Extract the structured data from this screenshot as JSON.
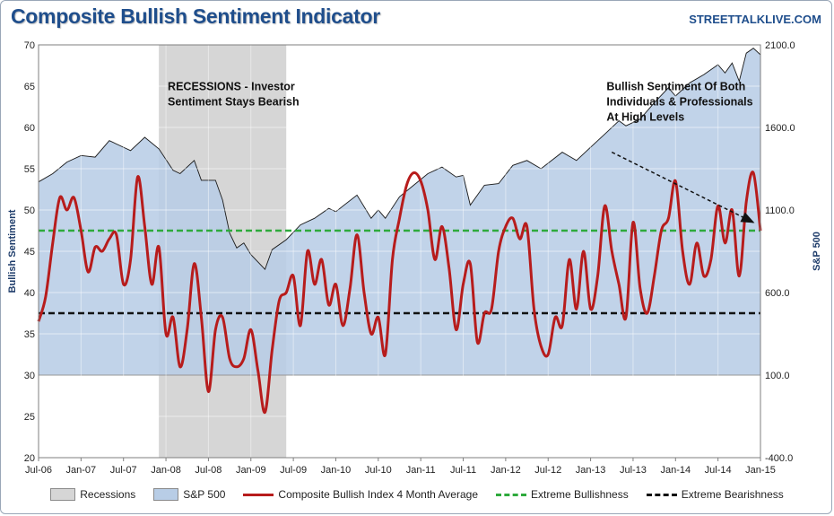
{
  "title": "Composite Bullish Sentiment Indicator",
  "brand": "STREETTALKLIVE.COM",
  "colors": {
    "recession": "#d6d6d6",
    "sp500_fill": "#b8cde6",
    "sp500_line": "#1a1a1a",
    "sentiment": "#b71c1c",
    "extreme_bullish": "#2eaa3c",
    "extreme_bearish": "#111111"
  },
  "chart_data": {
    "type": "line",
    "title": "Composite Bullish Sentiment Indicator",
    "ylabel": "Bullish Sentiment",
    "y2label": "S&P 500",
    "xlim": [
      "2006-07",
      "2015-01"
    ],
    "ylim": [
      20,
      70
    ],
    "y2lim": [
      -400,
      2100
    ],
    "xticks": [
      "Jul-06",
      "Jan-07",
      "Jul-07",
      "Jan-08",
      "Jul-08",
      "Jan-09",
      "Jul-09",
      "Jan-10",
      "Jul-10",
      "Jan-11",
      "Jul-11",
      "Jan-12",
      "Jul-12",
      "Jan-13",
      "Jul-13",
      "Jan-14",
      "Jul-14",
      "Jan-15"
    ],
    "yticks": [
      20,
      25,
      30,
      35,
      40,
      45,
      50,
      55,
      60,
      65,
      70
    ],
    "y2ticks": [
      "-400.0",
      "100.0",
      "600.0",
      "1100.0",
      "1600.0",
      "2100.0"
    ],
    "y2tick_values": [
      -400,
      100,
      600,
      1100,
      1600,
      2100
    ],
    "grid": true,
    "legend_position": "bottom",
    "recession": {
      "name": "Recessions",
      "start": "2007-12",
      "end": "2009-06"
    },
    "extreme_bullishness": {
      "name": "Extreme Bullishness",
      "value": 47.5
    },
    "extreme_bearishness": {
      "name": "Extreme Bearishness",
      "value": 37.5
    },
    "series": [
      {
        "name": "S&P 500",
        "axis": "right",
        "points": [
          [
            "2006-07",
            1270
          ],
          [
            "2006-09",
            1320
          ],
          [
            "2006-11",
            1390
          ],
          [
            "2007-01",
            1430
          ],
          [
            "2007-03",
            1420
          ],
          [
            "2007-05",
            1520
          ],
          [
            "2007-07",
            1480
          ],
          [
            "2007-08",
            1460
          ],
          [
            "2007-10",
            1540
          ],
          [
            "2007-12",
            1470
          ],
          [
            "2008-02",
            1340
          ],
          [
            "2008-03",
            1320
          ],
          [
            "2008-05",
            1400
          ],
          [
            "2008-06",
            1280
          ],
          [
            "2008-08",
            1280
          ],
          [
            "2008-09",
            1160
          ],
          [
            "2008-10",
            960
          ],
          [
            "2008-11",
            870
          ],
          [
            "2008-12",
            900
          ],
          [
            "2009-01",
            830
          ],
          [
            "2009-03",
            740
          ],
          [
            "2009-04",
            860
          ],
          [
            "2009-06",
            920
          ],
          [
            "2009-08",
            1010
          ],
          [
            "2009-10",
            1050
          ],
          [
            "2009-12",
            1110
          ],
          [
            "2010-01",
            1090
          ],
          [
            "2010-04",
            1190
          ],
          [
            "2010-06",
            1050
          ],
          [
            "2010-07",
            1100
          ],
          [
            "2010-08",
            1050
          ],
          [
            "2010-10",
            1180
          ],
          [
            "2010-12",
            1250
          ],
          [
            "2011-02",
            1320
          ],
          [
            "2011-04",
            1360
          ],
          [
            "2011-06",
            1300
          ],
          [
            "2011-07",
            1310
          ],
          [
            "2011-08",
            1130
          ],
          [
            "2011-10",
            1250
          ],
          [
            "2011-12",
            1260
          ],
          [
            "2012-02",
            1370
          ],
          [
            "2012-04",
            1400
          ],
          [
            "2012-06",
            1350
          ],
          [
            "2012-09",
            1450
          ],
          [
            "2012-11",
            1400
          ],
          [
            "2013-01",
            1480
          ],
          [
            "2013-03",
            1560
          ],
          [
            "2013-05",
            1640
          ],
          [
            "2013-06",
            1610
          ],
          [
            "2013-08",
            1650
          ],
          [
            "2013-10",
            1750
          ],
          [
            "2013-12",
            1840
          ],
          [
            "2014-01",
            1790
          ],
          [
            "2014-03",
            1870
          ],
          [
            "2014-05",
            1920
          ],
          [
            "2014-07",
            1980
          ],
          [
            "2014-08",
            1930
          ],
          [
            "2014-09",
            1990
          ],
          [
            "2014-10",
            1880
          ],
          [
            "2014-11",
            2050
          ],
          [
            "2014-12",
            2080
          ],
          [
            "2015-01",
            2040
          ]
        ]
      },
      {
        "name": "Composite Bullish Index 4 Month Average",
        "axis": "left",
        "points": [
          [
            "2006-07",
            36.5
          ],
          [
            "2006-08",
            39.5
          ],
          [
            "2006-09",
            46.0
          ],
          [
            "2006-10",
            51.5
          ],
          [
            "2006-11",
            50.0
          ],
          [
            "2006-12",
            51.5
          ],
          [
            "2007-01",
            47.5
          ],
          [
            "2007-02",
            42.5
          ],
          [
            "2007-03",
            45.5
          ],
          [
            "2007-04",
            45.0
          ],
          [
            "2007-05",
            46.5
          ],
          [
            "2007-06",
            47.0
          ],
          [
            "2007-07",
            41.0
          ],
          [
            "2007-08",
            44.0
          ],
          [
            "2007-09",
            54.0
          ],
          [
            "2007-10",
            48.0
          ],
          [
            "2007-11",
            41.0
          ],
          [
            "2007-12",
            45.5
          ],
          [
            "2008-01",
            35.0
          ],
          [
            "2008-02",
            37.0
          ],
          [
            "2008-03",
            31.0
          ],
          [
            "2008-04",
            35.5
          ],
          [
            "2008-05",
            43.5
          ],
          [
            "2008-06",
            37.0
          ],
          [
            "2008-07",
            28.0
          ],
          [
            "2008-08",
            35.5
          ],
          [
            "2008-09",
            37.0
          ],
          [
            "2008-10",
            32.0
          ],
          [
            "2008-11",
            31.0
          ],
          [
            "2008-12",
            32.0
          ],
          [
            "2009-01",
            35.5
          ],
          [
            "2009-02",
            30.5
          ],
          [
            "2009-03",
            25.5
          ],
          [
            "2009-04",
            33.0
          ],
          [
            "2009-05",
            39.0
          ],
          [
            "2009-06",
            40.0
          ],
          [
            "2009-07",
            42.0
          ],
          [
            "2009-08",
            36.0
          ],
          [
            "2009-09",
            45.0
          ],
          [
            "2009-10",
            41.0
          ],
          [
            "2009-11",
            44.0
          ],
          [
            "2009-12",
            38.5
          ],
          [
            "2010-01",
            41.0
          ],
          [
            "2010-02",
            36.0
          ],
          [
            "2010-03",
            40.5
          ],
          [
            "2010-04",
            47.0
          ],
          [
            "2010-05",
            40.0
          ],
          [
            "2010-06",
            35.0
          ],
          [
            "2010-07",
            37.0
          ],
          [
            "2010-08",
            32.5
          ],
          [
            "2010-09",
            44.0
          ],
          [
            "2010-10",
            49.0
          ],
          [
            "2010-11",
            53.0
          ],
          [
            "2010-12",
            54.5
          ],
          [
            "2011-01",
            53.5
          ],
          [
            "2011-02",
            50.0
          ],
          [
            "2011-03",
            44.0
          ],
          [
            "2011-04",
            48.0
          ],
          [
            "2011-05",
            43.0
          ],
          [
            "2011-06",
            35.5
          ],
          [
            "2011-07",
            41.0
          ],
          [
            "2011-08",
            43.5
          ],
          [
            "2011-09",
            34.0
          ],
          [
            "2011-10",
            37.5
          ],
          [
            "2011-11",
            38.0
          ],
          [
            "2011-12",
            45.0
          ],
          [
            "2012-01",
            48.0
          ],
          [
            "2012-02",
            49.0
          ],
          [
            "2012-03",
            46.5
          ],
          [
            "2012-04",
            48.0
          ],
          [
            "2012-05",
            38.0
          ],
          [
            "2012-06",
            33.5
          ],
          [
            "2012-07",
            32.5
          ],
          [
            "2012-08",
            37.0
          ],
          [
            "2012-09",
            36.0
          ],
          [
            "2012-10",
            44.0
          ],
          [
            "2012-11",
            38.0
          ],
          [
            "2012-12",
            45.0
          ],
          [
            "2013-01",
            38.0
          ],
          [
            "2013-02",
            42.0
          ],
          [
            "2013-03",
            50.5
          ],
          [
            "2013-04",
            45.0
          ],
          [
            "2013-05",
            41.0
          ],
          [
            "2013-06",
            37.0
          ],
          [
            "2013-07",
            48.5
          ],
          [
            "2013-08",
            40.5
          ],
          [
            "2013-09",
            37.5
          ],
          [
            "2013-10",
            42.0
          ],
          [
            "2013-11",
            47.5
          ],
          [
            "2013-12",
            49.0
          ],
          [
            "2014-01",
            53.5
          ],
          [
            "2014-02",
            45.0
          ],
          [
            "2014-03",
            41.0
          ],
          [
            "2014-04",
            46.0
          ],
          [
            "2014-05",
            42.0
          ],
          [
            "2014-06",
            44.0
          ],
          [
            "2014-07",
            50.5
          ],
          [
            "2014-08",
            46.0
          ],
          [
            "2014-09",
            50.0
          ],
          [
            "2014-10",
            42.0
          ],
          [
            "2014-11",
            51.0
          ],
          [
            "2014-12",
            54.5
          ],
          [
            "2015-01",
            47.5
          ]
        ]
      }
    ],
    "annotations": [
      {
        "lines": [
          "RECESSIONS - Investor",
          "Sentiment Stays Bearish"
        ],
        "at": [
          "2008-01",
          64.5
        ]
      },
      {
        "lines": [
          "Bullish Sentiment Of Both",
          "Individuals & Professionals",
          "At High Levels"
        ],
        "at": [
          "2013-03",
          64.5
        ]
      }
    ],
    "arrow": {
      "from": [
        "2013-04",
        57.0
      ],
      "to": [
        "2014-12",
        48.5
      ]
    }
  },
  "legend": [
    {
      "label": "Recessions",
      "kind": "box",
      "color_key": "recession"
    },
    {
      "label": "S&P 500",
      "kind": "box",
      "color_key": "sp500_fill"
    },
    {
      "label": "Composite Bullish Index 4 Month Average",
      "kind": "line",
      "color_key": "sentiment"
    },
    {
      "label": "Extreme Bullishness",
      "kind": "dash",
      "color_key": "extreme_bullish"
    },
    {
      "label": "Extreme Bearishness",
      "kind": "dash",
      "color_key": "extreme_bearish"
    }
  ]
}
